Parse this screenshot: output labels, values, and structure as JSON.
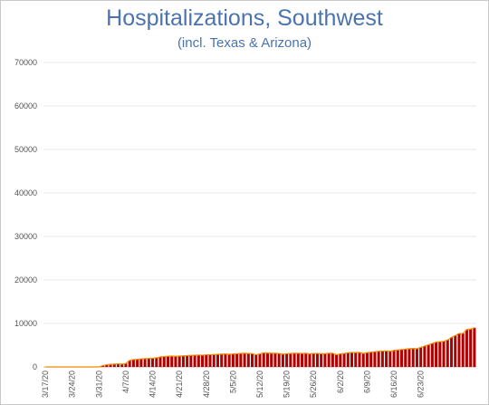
{
  "chart_data": {
    "type": "bar",
    "title": "Hospitalizations, Southwest",
    "subtitle": "(incl. Texas & Arizona)",
    "ylim": [
      0,
      70000
    ],
    "yticks": [
      0,
      10000,
      20000,
      30000,
      40000,
      50000,
      60000,
      70000
    ],
    "grid": true,
    "colors": {
      "bar": "#b00000",
      "line": "#f08c00",
      "grid": "#e6e6e6"
    },
    "x_tick_labels": [
      "3/17/20",
      "3/24/20",
      "3/31/20",
      "4/7/20",
      "4/14/20",
      "4/21/20",
      "4/28/20",
      "5/5/20",
      "5/12/20",
      "5/19/20",
      "5/26/20",
      "6/2/20",
      "6/9/20",
      "6/16/20",
      "6/23/20"
    ],
    "start_date": "3/17/20",
    "values": [
      0,
      0,
      0,
      0,
      0,
      0,
      0,
      0,
      0,
      0,
      0,
      0,
      0,
      0,
      0,
      300,
      500,
      600,
      650,
      700,
      650,
      800,
      1500,
      1700,
      1750,
      1850,
      1900,
      1950,
      2000,
      2100,
      2300,
      2400,
      2450,
      2500,
      2450,
      2500,
      2550,
      2600,
      2650,
      2700,
      2750,
      2700,
      2800,
      2800,
      2850,
      2900,
      2950,
      3000,
      2900,
      3000,
      3050,
      3100,
      3150,
      3100,
      3050,
      2800,
      3000,
      3250,
      3200,
      3150,
      3150,
      3100,
      2950,
      3050,
      3100,
      3150,
      3150,
      3100,
      3150,
      3000,
      3100,
      3100,
      3050,
      3050,
      3150,
      3150,
      2800,
      3000,
      3100,
      3250,
      3350,
      3300,
      3350,
      3100,
      3300,
      3400,
      3500,
      3600,
      3650,
      3700,
      3600,
      3800,
      3900,
      4000,
      4100,
      4200,
      4250,
      4200,
      4500,
      4800,
      5100,
      5400,
      5700,
      5800,
      5900,
      6200,
      6800,
      7200,
      7700,
      7700,
      8600,
      8700,
      9000
    ]
  }
}
